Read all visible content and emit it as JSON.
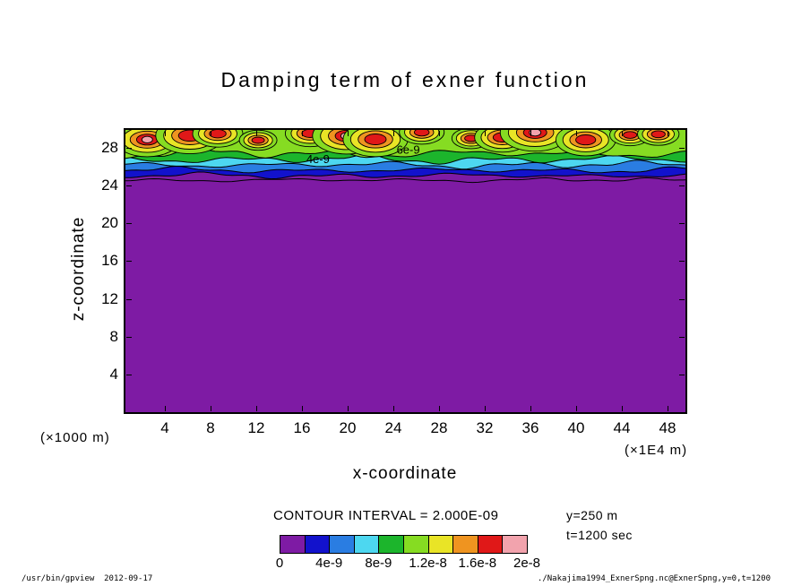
{
  "title": "Damping term of exner function",
  "axes": {
    "x_label": "x-coordinate",
    "x_unit": "(×1E4 m)",
    "y_label": "z-coordinate",
    "y_unit": "(×1000 m)",
    "x_ticks": [
      4,
      8,
      12,
      16,
      20,
      24,
      28,
      32,
      36,
      40,
      44,
      48
    ],
    "y_ticks": [
      4,
      8,
      12,
      16,
      20,
      24,
      28
    ],
    "x_range": [
      0,
      50
    ],
    "y_range": [
      0,
      30
    ]
  },
  "legend": {
    "contour_interval_label": "CONTOUR INTERVAL = 2.000E-09",
    "tick_labels": [
      "0",
      "4e-9",
      "8e-9",
      "1.2e-8",
      "1.6e-8",
      "2e-8"
    ],
    "palette": [
      "#7e1ba4",
      "#1212cc",
      "#2a7de2",
      "#4dd7f0",
      "#1cb52c",
      "#86dc22",
      "#e9e426",
      "#ef9420",
      "#e01818",
      "#f2a3ad"
    ]
  },
  "annotations": {
    "contour_labels": [
      {
        "text": "4e-9",
        "x": 17.4,
        "z": 26.4
      },
      {
        "text": "6e-9",
        "x": 25.3,
        "z": 27.4
      }
    ],
    "y_info": "y=250 m",
    "t_info": "t=1200 sec"
  },
  "footer": {
    "left": "/usr/bin/gpview  2012-09-17",
    "right": "./Nakajima1994_ExnerSpng.nc@ExnerSpng,y=0,t=1200"
  },
  "chart_data": {
    "type": "heatmap",
    "subtype": "filled-contour",
    "title": "Damping term of exner function",
    "xlabel": "x-coordinate (×1E4 m)",
    "ylabel": "z-coordinate (×1000 m)",
    "xlim": [
      0,
      50
    ],
    "ylim": [
      0,
      30
    ],
    "x_ticks": [
      4,
      8,
      12,
      16,
      20,
      24,
      28,
      32,
      36,
      40,
      44,
      48
    ],
    "y_ticks": [
      4,
      8,
      12,
      16,
      20,
      24,
      28
    ],
    "contour_interval": 2e-09,
    "levels": [
      0,
      2e-09,
      4e-09,
      6e-09,
      8e-09,
      1e-08,
      1.2e-08,
      1.4e-08,
      1.6e-08,
      1.8e-08,
      2e-08
    ],
    "value_range": [
      0,
      2e-08
    ],
    "palette": [
      "#7e1ba4",
      "#1212cc",
      "#2a7de2",
      "#4dd7f0",
      "#1cb52c",
      "#86dc22",
      "#e9e426",
      "#ef9420",
      "#e01818",
      "#f2a3ad"
    ],
    "legend_position": "bottom",
    "grid": false,
    "slice": {
      "y": "250 m",
      "t": "1200 sec"
    },
    "description": "Damping (sponge-layer) term of the Exner function: value is 0 (purple) over the whole domain below z≈25–26 (×1000 m); in the sponge layer z≈26–30 the field increases through contour bands (interval 2e-9), forming a train of periodic cell-like maxima along the top boundary that reach ≈1.8e-8–2e-8 (red/pink cores ringed by orange, yellow and green)."
  }
}
